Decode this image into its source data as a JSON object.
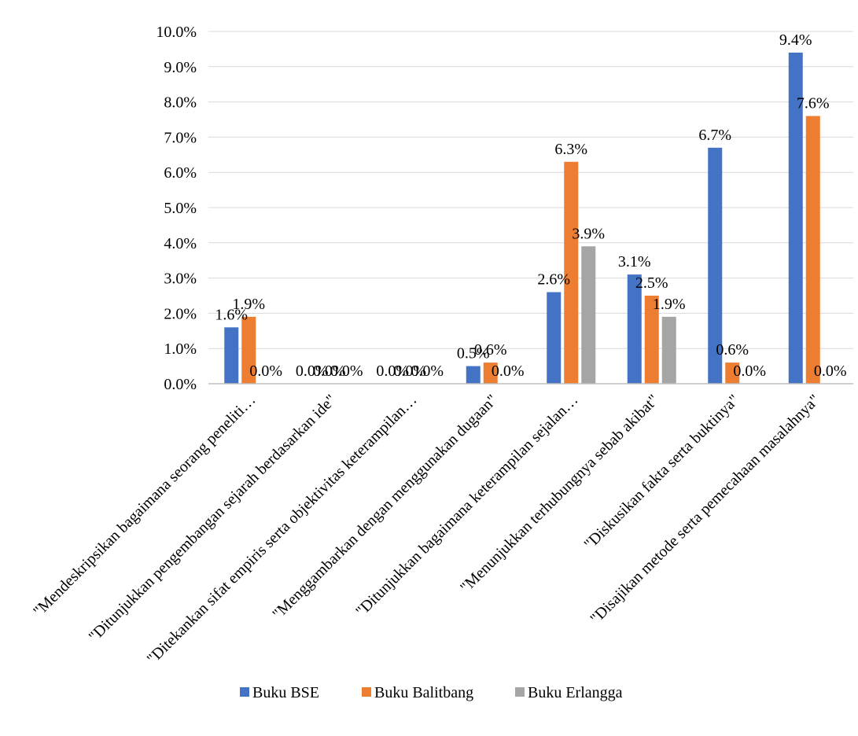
{
  "chart_data": {
    "type": "bar",
    "categories": [
      "\"Mendeskripsikan bagaimana seorang peneliti…",
      "\"Ditunjukkan pengembangan sejarah berdasarkan ide\"",
      "\"Ditekankan sifat empiris serta objektivitas keterampilan…",
      "\"Menggambarkan dengan menggunakan dugaan\"",
      "\"Ditunjukkan bagaimana keterampilan sejalan…",
      "\"Menunjukkan terhubungnya sebab akibat\"",
      "\"Diskusikan fakta  serta buktinya\"",
      "\"Disajikan metode  serta pemecahaan masalahnya\""
    ],
    "series": [
      {
        "name": "Buku BSE",
        "color": "#4472C4",
        "values": [
          1.6,
          0.0,
          0.0,
          0.5,
          2.6,
          3.1,
          6.7,
          9.4
        ]
      },
      {
        "name": "Buku Balitbang",
        "color": "#ED7D31",
        "values": [
          1.9,
          0.0,
          0.0,
          0.6,
          6.3,
          2.5,
          0.6,
          7.6
        ]
      },
      {
        "name": "Buku Erlangga",
        "color": "#A5A5A5",
        "values": [
          0.0,
          0.0,
          0.0,
          0.0,
          3.9,
          1.9,
          0.0,
          0.0
        ]
      }
    ],
    "data_labels": [
      [
        "1.6%",
        "0.0%",
        "0.0%",
        "0.5%",
        "2.6%",
        "3.1%",
        "6.7%",
        "9.4%"
      ],
      [
        "1.9%",
        "0.0%",
        "0.0%",
        "0.6%",
        "6.3%",
        "2.5%",
        "0.6%",
        "7.6%"
      ],
      [
        "0.0%",
        "0.0%",
        "0.0%",
        "0.0%",
        "3.9%",
        "1.9%",
        "0.0%",
        "0.0%"
      ]
    ],
    "y_ticks": [
      "0.0%",
      "1.0%",
      "2.0%",
      "3.0%",
      "4.0%",
      "5.0%",
      "6.0%",
      "7.0%",
      "8.0%",
      "9.0%",
      "10.0%"
    ],
    "ylim": [
      0,
      10
    ],
    "grid": true,
    "legend_position": "bottom"
  }
}
